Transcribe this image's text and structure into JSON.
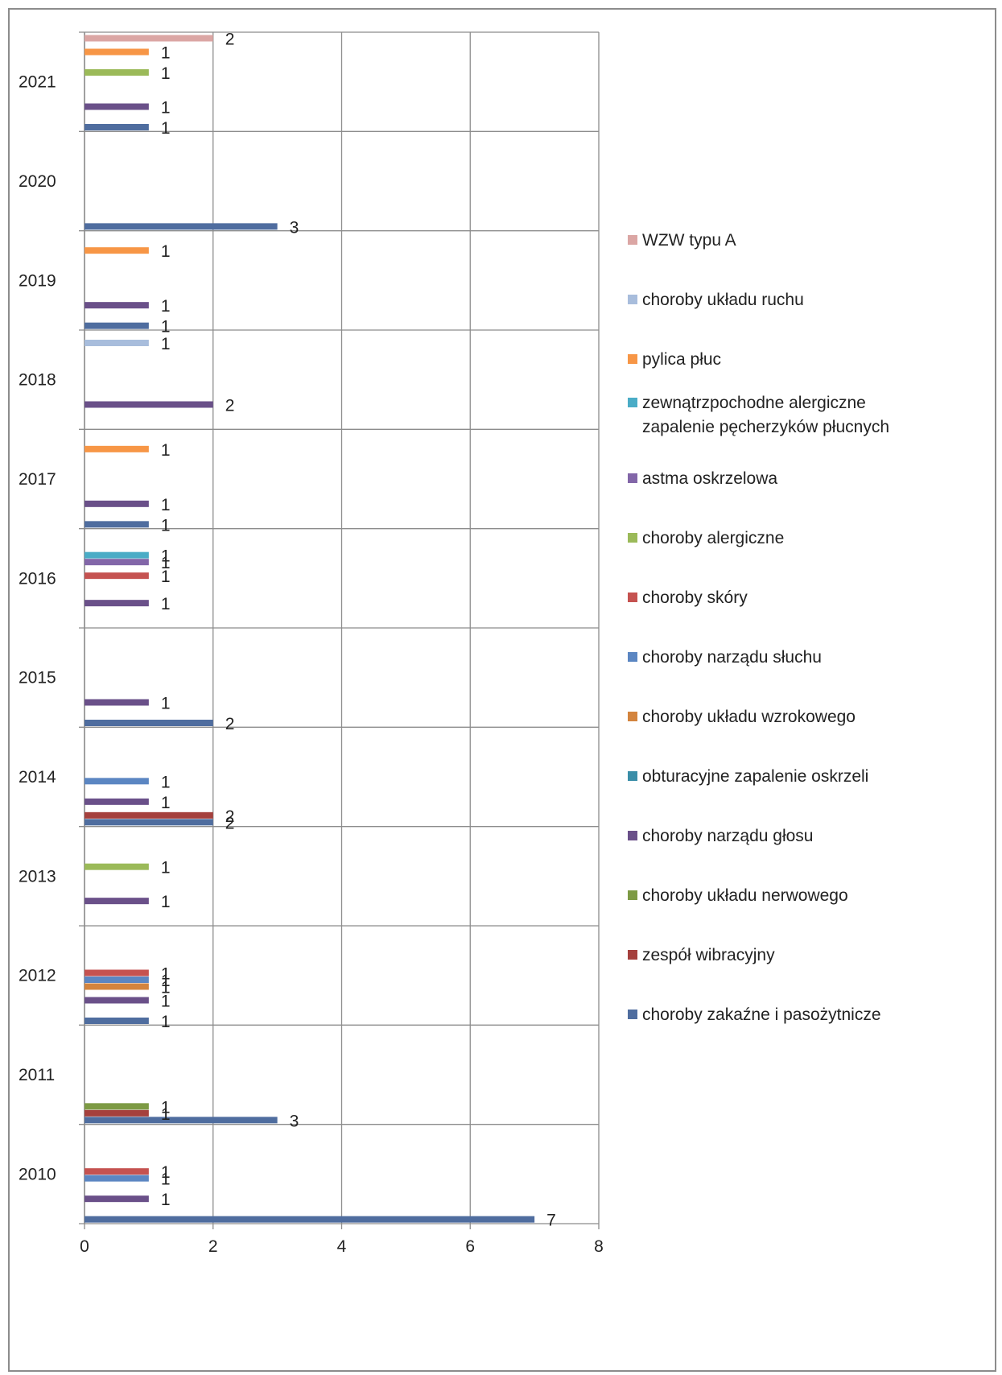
{
  "chart_data": {
    "type": "bar",
    "orientation": "horizontal",
    "title": "",
    "xlabel": "",
    "ylabel": "",
    "xlim": [
      0,
      8
    ],
    "x_ticks": [
      "0",
      "2",
      "4",
      "6",
      "8"
    ],
    "grid": true,
    "legend_position": "right",
    "categories": [
      "2010",
      "2011",
      "2012",
      "2013",
      "2014",
      "2015",
      "2016",
      "2017",
      "2018",
      "2019",
      "2020",
      "2021"
    ],
    "series": [
      {
        "name": "choroby zakaźne i pasożytnicze",
        "color": "#4f6d9f",
        "values": [
          7,
          3,
          1,
          null,
          2,
          2,
          null,
          1,
          null,
          1,
          3,
          1
        ]
      },
      {
        "name": "zespół wibracyjny",
        "color": "#a5403d",
        "values": [
          null,
          1,
          null,
          null,
          2,
          null,
          null,
          null,
          null,
          null,
          null,
          null
        ]
      },
      {
        "name": "choroby układu nerwowego",
        "color": "#7d9a44",
        "values": [
          null,
          1,
          null,
          null,
          null,
          null,
          null,
          null,
          null,
          null,
          null,
          null
        ]
      },
      {
        "name": "choroby narządu głosu",
        "color": "#6a5089",
        "values": [
          1,
          null,
          1,
          1,
          1,
          1,
          1,
          1,
          2,
          1,
          null,
          1
        ]
      },
      {
        "name": "obturacyjne zapalenie oskrzeli",
        "color": "#3a8ea8",
        "values": [
          null,
          null,
          null,
          null,
          null,
          null,
          null,
          null,
          null,
          null,
          null,
          null
        ]
      },
      {
        "name": "choroby układu wzrokowego",
        "color": "#d3843e",
        "values": [
          null,
          null,
          1,
          null,
          null,
          null,
          null,
          null,
          null,
          null,
          null,
          null
        ]
      },
      {
        "name": "choroby narządu słuchu",
        "color": "#5b86c2",
        "values": [
          1,
          null,
          1,
          null,
          1,
          null,
          null,
          null,
          null,
          null,
          null,
          null
        ]
      },
      {
        "name": "choroby skóry",
        "color": "#c55250",
        "values": [
          1,
          null,
          1,
          null,
          null,
          null,
          1,
          null,
          null,
          null,
          null,
          null
        ]
      },
      {
        "name": "choroby alergiczne",
        "color": "#9bba59",
        "values": [
          null,
          null,
          null,
          1,
          null,
          null,
          null,
          null,
          null,
          null,
          null,
          1
        ]
      },
      {
        "name": "astma oskrzelowa",
        "color": "#8266a8",
        "values": [
          null,
          null,
          null,
          null,
          null,
          null,
          1,
          null,
          null,
          null,
          null,
          null
        ]
      },
      {
        "name": "zewnątrzpochodne alergiczne zapalenie pęcherzyków płucnych",
        "name_lines": [
          "zewnątrzpochodne alergiczne",
          "zapalenie pęcherzyków płucnych"
        ],
        "color": "#4aacc6",
        "values": [
          null,
          null,
          null,
          null,
          null,
          null,
          1,
          null,
          null,
          null,
          null,
          null
        ]
      },
      {
        "name": "pylica płuc",
        "color": "#f79646",
        "values": [
          null,
          null,
          null,
          null,
          null,
          null,
          null,
          1,
          null,
          1,
          null,
          1
        ]
      },
      {
        "name": "choroby układu ruchu",
        "color": "#a8bddc",
        "values": [
          null,
          null,
          null,
          null,
          null,
          null,
          null,
          null,
          1,
          null,
          null,
          null
        ]
      },
      {
        "name": "WZW typu A",
        "color": "#dba6a4",
        "values": [
          null,
          null,
          null,
          null,
          null,
          null,
          null,
          null,
          null,
          null,
          null,
          2
        ]
      }
    ]
  }
}
